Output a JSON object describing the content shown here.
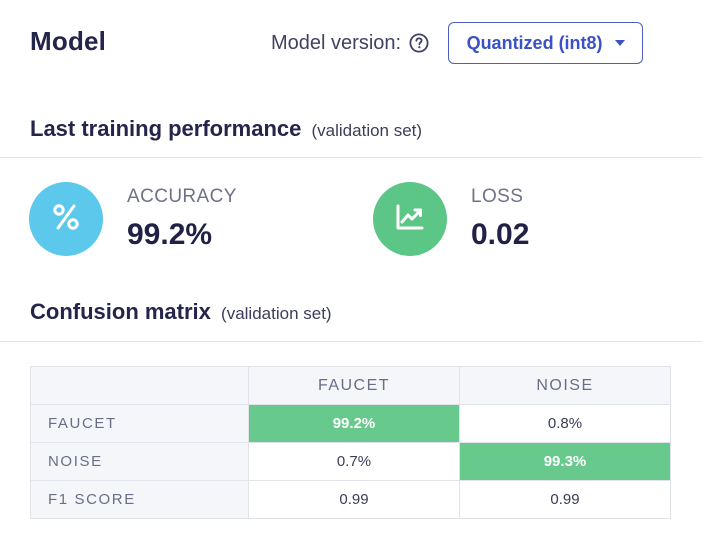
{
  "header": {
    "title": "Model",
    "version_label": "Model version:",
    "version_value": "Quantized (int8)"
  },
  "performance": {
    "title": "Last training performance",
    "subtitle": "(validation set)",
    "metrics": [
      {
        "name": "ACCURACY",
        "value": "99.2%",
        "icon": "percent-icon",
        "color": "#5bc8ec"
      },
      {
        "name": "LOSS",
        "value": "0.02",
        "icon": "trending-chart-icon",
        "color": "#5cc687"
      }
    ]
  },
  "confusion": {
    "title": "Confusion matrix",
    "subtitle": "(validation set)",
    "columns": [
      "FAUCET",
      "NOISE"
    ],
    "rows": [
      {
        "label": "FAUCET",
        "values": [
          "99.2%",
          "0.8%"
        ]
      },
      {
        "label": "NOISE",
        "values": [
          "0.7%",
          "99.3%"
        ]
      },
      {
        "label": "F1 SCORE",
        "values": [
          "0.99",
          "0.99"
        ]
      }
    ],
    "highlight_color": "#67c98b"
  }
}
